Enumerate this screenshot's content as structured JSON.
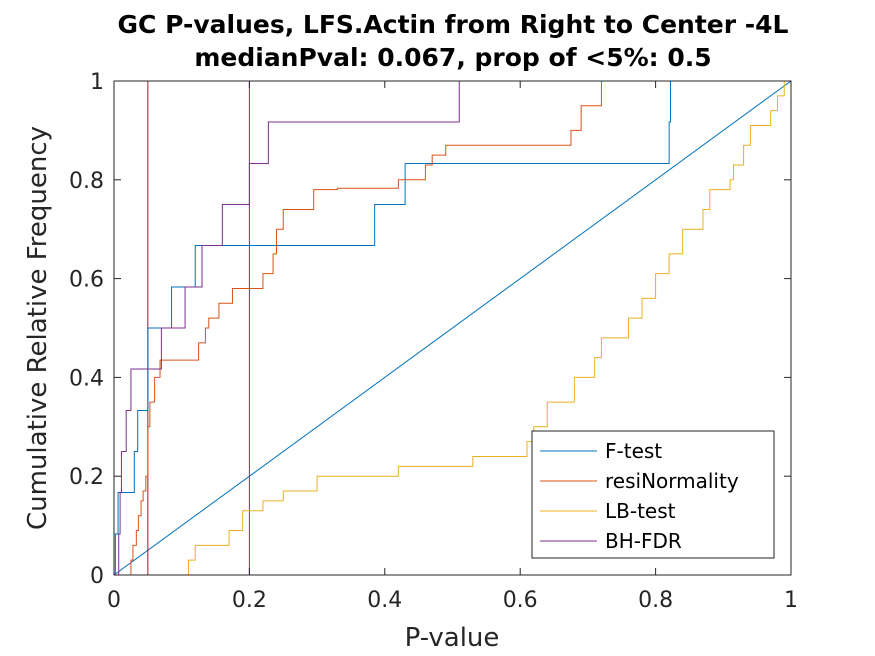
{
  "chart_data": {
    "type": "line",
    "title": "GC P-values, LFS.Actin from Right to Center -4L",
    "subtitle": "medianPval: 0.067, prop of <5%: 0.5",
    "xlabel": "P-value",
    "ylabel": "Cumulative Relative Frequency",
    "xlim": [
      0,
      1
    ],
    "ylim": [
      0,
      1
    ],
    "xticks": [
      "0",
      "0.2",
      "0.4",
      "0.6",
      "0.8",
      "1"
    ],
    "yticks": [
      "0",
      "0.2",
      "0.4",
      "0.6",
      "0.8",
      "1"
    ],
    "legend_position": "bottom-right",
    "grid": false,
    "vertical_lines": [
      {
        "x": 0.05,
        "color": "#A2142F"
      },
      {
        "x": 0.2,
        "color": "#BD00BD"
      }
    ],
    "diagonal": {
      "from": [
        0,
        0
      ],
      "to": [
        1,
        1
      ],
      "color": "#0072BD"
    },
    "series": [
      {
        "name": "F-test",
        "color": "#0072BD",
        "step": true,
        "x": [
          0,
          0.002,
          0.006,
          0.03,
          0.035,
          0.05,
          0.085,
          0.12,
          0.385,
          0.43,
          0.82,
          0.822
        ],
        "y": [
          0,
          0.083,
          0.167,
          0.25,
          0.333,
          0.5,
          0.583,
          0.667,
          0.75,
          0.833,
          0.917,
          1.0
        ]
      },
      {
        "name": "resiNormality",
        "color": "#D95319",
        "step": true,
        "x": [
          0,
          0.025,
          0.028,
          0.033,
          0.036,
          0.04,
          0.043,
          0.047,
          0.05,
          0.053,
          0.06,
          0.068,
          0.125,
          0.135,
          0.14,
          0.155,
          0.175,
          0.22,
          0.235,
          0.24,
          0.25,
          0.295,
          0.33,
          0.42,
          0.46,
          0.47,
          0.49,
          0.675,
          0.69,
          0.72
        ],
        "y": [
          0,
          0.03,
          0.06,
          0.09,
          0.12,
          0.15,
          0.17,
          0.2,
          0.3,
          0.35,
          0.4,
          0.435,
          0.47,
          0.5,
          0.52,
          0.55,
          0.58,
          0.61,
          0.65,
          0.7,
          0.74,
          0.78,
          0.783,
          0.8,
          0.83,
          0.85,
          0.87,
          0.9,
          0.95,
          1.0
        ]
      },
      {
        "name": "LB-test",
        "color": "#EDB120",
        "step": true,
        "x": [
          0,
          0.11,
          0.12,
          0.17,
          0.19,
          0.22,
          0.25,
          0.3,
          0.42,
          0.53,
          0.61,
          0.62,
          0.64,
          0.68,
          0.71,
          0.72,
          0.76,
          0.78,
          0.8,
          0.82,
          0.84,
          0.87,
          0.88,
          0.91,
          0.915,
          0.93,
          0.94,
          0.97,
          0.98,
          0.99
        ],
        "y": [
          0,
          0.03,
          0.06,
          0.09,
          0.13,
          0.15,
          0.17,
          0.2,
          0.22,
          0.24,
          0.27,
          0.3,
          0.35,
          0.4,
          0.44,
          0.48,
          0.52,
          0.56,
          0.61,
          0.65,
          0.7,
          0.74,
          0.78,
          0.8,
          0.83,
          0.87,
          0.91,
          0.94,
          0.97,
          1.0
        ]
      },
      {
        "name": "BH-FDR",
        "color": "#7E2F8E",
        "step": true,
        "x": [
          0,
          0.007,
          0.009,
          0.011,
          0.018,
          0.025,
          0.07,
          0.105,
          0.13,
          0.16,
          0.2,
          0.228,
          0.51,
          0.515,
          0.535,
          0.87,
          0.875
        ],
        "y": [
          0,
          0.083,
          0.167,
          0.25,
          0.333,
          0.417,
          0.5,
          0.583,
          0.667,
          0.75,
          0.833,
          0.917,
          1.0,
          1.0,
          1.0,
          1.0,
          1.0
        ]
      }
    ]
  }
}
